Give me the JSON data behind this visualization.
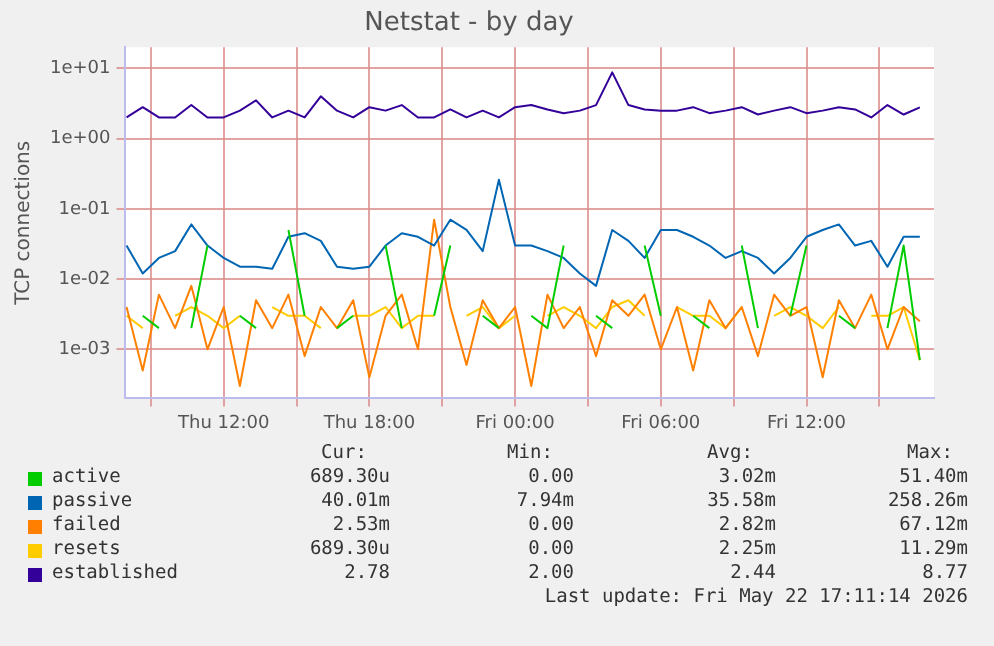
{
  "chart_data": {
    "type": "line",
    "title": "Netstat - by day",
    "ylabel": "TCP connections",
    "log": true,
    "grid": true,
    "legend": "bottom",
    "marker": "none",
    "line_style": "solid",
    "xlim": [
      "2026-05-21T07:55",
      "2026-05-22T17:15"
    ],
    "xticks": [
      {
        "value": "2026-05-21T09:00",
        "label": null
      },
      {
        "value": "2026-05-21T12:00",
        "label": "Thu 12:00"
      },
      {
        "value": "2026-05-21T15:00",
        "label": null
      },
      {
        "value": "2026-05-21T18:00",
        "label": "Thu 18:00"
      },
      {
        "value": "2026-05-21T21:00",
        "label": null
      },
      {
        "value": "2026-05-22T00:00",
        "label": "Fri 00:00"
      },
      {
        "value": "2026-05-22T03:00",
        "label": null
      },
      {
        "value": "2026-05-22T06:00",
        "label": "Fri 06:00"
      },
      {
        "value": "2026-05-22T09:00",
        "label": null
      },
      {
        "value": "2026-05-22T12:00",
        "label": "Fri 12:00"
      },
      {
        "value": "2026-05-22T15:00",
        "label": null
      }
    ],
    "ylim": [
      0.0002,
      20
    ],
    "yticks": [
      {
        "value": 0.001,
        "label": "1e-03"
      },
      {
        "value": 0.01,
        "label": "1e-02"
      },
      {
        "value": 0.1,
        "label": "1e-01"
      },
      {
        "value": 1,
        "label": "1e+00"
      },
      {
        "value": 10,
        "label": "1e+01"
      }
    ],
    "x": [
      "2026-05-21T08:00",
      "2026-05-21T08:40",
      "2026-05-21T09:20",
      "2026-05-21T10:00",
      "2026-05-21T10:40",
      "2026-05-21T11:20",
      "2026-05-21T12:00",
      "2026-05-21T12:40",
      "2026-05-21T13:20",
      "2026-05-21T14:00",
      "2026-05-21T14:40",
      "2026-05-21T15:20",
      "2026-05-21T16:00",
      "2026-05-21T16:40",
      "2026-05-21T17:20",
      "2026-05-21T18:00",
      "2026-05-21T18:40",
      "2026-05-21T19:20",
      "2026-05-21T20:00",
      "2026-05-21T20:40",
      "2026-05-21T21:20",
      "2026-05-21T22:00",
      "2026-05-21T22:40",
      "2026-05-21T23:20",
      "2026-05-22T00:00",
      "2026-05-22T00:40",
      "2026-05-22T01:20",
      "2026-05-22T02:00",
      "2026-05-22T02:40",
      "2026-05-22T03:20",
      "2026-05-22T04:00",
      "2026-05-22T04:40",
      "2026-05-22T05:20",
      "2026-05-22T06:00",
      "2026-05-22T06:40",
      "2026-05-22T07:20",
      "2026-05-22T08:00",
      "2026-05-22T08:40",
      "2026-05-22T09:20",
      "2026-05-22T10:00",
      "2026-05-22T10:40",
      "2026-05-22T11:20",
      "2026-05-22T12:00",
      "2026-05-22T12:40",
      "2026-05-22T13:20",
      "2026-05-22T14:00",
      "2026-05-22T14:40",
      "2026-05-22T15:20",
      "2026-05-22T16:00",
      "2026-05-22T16:40"
    ],
    "series": [
      {
        "name": "active",
        "color": "#00cc00",
        "values": [
          null,
          0.003,
          0.002,
          null,
          0.002,
          0.03,
          null,
          0.003,
          0.002,
          null,
          0.05,
          0.003,
          null,
          0.002,
          0.003,
          null,
          0.03,
          0.002,
          null,
          0.003,
          0.03,
          null,
          0.003,
          0.002,
          null,
          0.003,
          0.002,
          0.03,
          null,
          0.003,
          0.002,
          null,
          0.03,
          0.003,
          null,
          0.003,
          0.002,
          null,
          0.03,
          0.002,
          null,
          0.003,
          0.03,
          null,
          0.003,
          0.002,
          null,
          0.002,
          0.03,
          0.0007
        ]
      },
      {
        "name": "passive",
        "color": "#0066b3",
        "values": [
          0.03,
          0.012,
          0.02,
          0.025,
          0.06,
          0.03,
          0.02,
          0.015,
          0.015,
          0.014,
          0.04,
          0.045,
          0.035,
          0.015,
          0.014,
          0.015,
          0.03,
          0.045,
          0.04,
          0.03,
          0.07,
          0.05,
          0.025,
          0.26,
          0.03,
          0.03,
          0.025,
          0.02,
          0.012,
          0.008,
          0.05,
          0.035,
          0.02,
          0.05,
          0.05,
          0.04,
          0.03,
          0.02,
          0.025,
          0.02,
          0.012,
          0.02,
          0.04,
          0.05,
          0.06,
          0.03,
          0.035,
          0.015,
          0.04,
          0.04
        ]
      },
      {
        "name": "failed",
        "color": "#ff8000",
        "values": [
          0.004,
          0.0005,
          0.006,
          0.002,
          0.008,
          0.001,
          0.004,
          0.0003,
          0.005,
          0.002,
          0.006,
          0.0008,
          0.004,
          0.002,
          0.005,
          0.0004,
          0.003,
          0.006,
          0.001,
          0.07,
          0.004,
          0.0006,
          0.005,
          0.002,
          0.004,
          0.0003,
          0.006,
          0.002,
          0.004,
          0.0008,
          0.005,
          0.003,
          0.006,
          0.001,
          0.004,
          0.0005,
          0.005,
          0.002,
          0.004,
          0.0008,
          0.006,
          0.003,
          0.004,
          0.0004,
          0.005,
          0.002,
          0.006,
          0.001,
          0.004,
          0.0025
        ]
      },
      {
        "name": "resets",
        "color": "#ffcc00",
        "values": [
          0.003,
          0.002,
          null,
          0.003,
          0.004,
          0.003,
          0.002,
          0.003,
          null,
          0.004,
          0.003,
          0.003,
          0.002,
          null,
          0.003,
          0.003,
          0.004,
          0.002,
          0.003,
          0.003,
          null,
          0.003,
          0.004,
          0.002,
          0.003,
          null,
          0.003,
          0.004,
          0.003,
          0.002,
          0.004,
          0.005,
          0.003,
          null,
          0.004,
          0.003,
          0.003,
          0.002,
          0.004,
          null,
          0.003,
          0.004,
          0.003,
          0.002,
          0.004,
          null,
          0.003,
          0.003,
          0.004,
          0.0007
        ]
      },
      {
        "name": "established",
        "color": "#330099",
        "values": [
          2,
          2.8,
          2,
          2,
          3,
          2,
          2,
          2.5,
          3.5,
          2,
          2.5,
          2,
          4,
          2.5,
          2,
          2.8,
          2.5,
          3,
          2,
          2,
          2.6,
          2,
          2.5,
          2,
          2.8,
          3,
          2.6,
          2.3,
          2.5,
          3,
          8.77,
          3,
          2.6,
          2.5,
          2.5,
          2.8,
          2.3,
          2.5,
          2.8,
          2.2,
          2.5,
          2.8,
          2.3,
          2.5,
          2.8,
          2.6,
          2,
          3,
          2.2,
          2.78
        ]
      }
    ],
    "annotations": [
      "Cur:",
      "Min:",
      "Avg:",
      "Max:",
      "689.30u",
      "0.00",
      "3.02m",
      "51.40m",
      "40.01m",
      "7.94m",
      "35.58m",
      "258.26m",
      "2.53m",
      "0.00",
      "2.82m",
      "67.12m",
      "689.30u",
      "0.00",
      "2.25m",
      "11.29m",
      "2.78",
      "2.00",
      "2.44",
      "8.77",
      "Last update: Fri May 22 17:11:14 2026"
    ]
  }
}
